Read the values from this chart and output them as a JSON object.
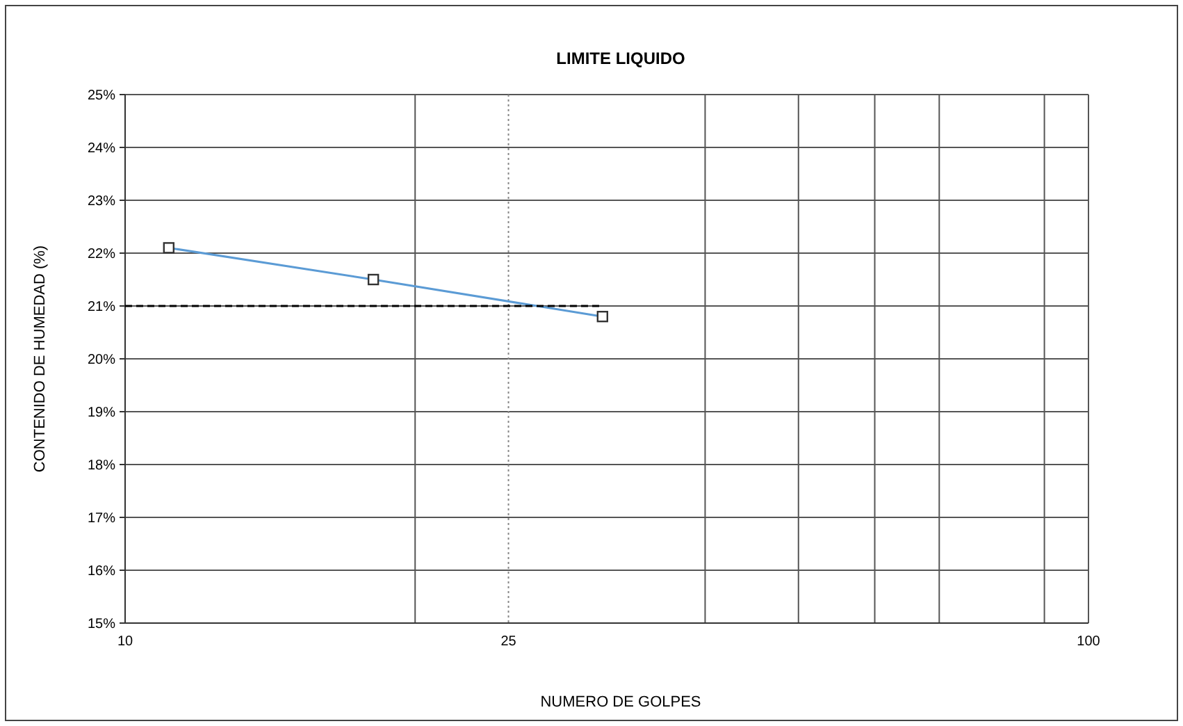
{
  "chart_data": {
    "type": "line",
    "title": "LIMITE LIQUIDO",
    "xlabel": "NUMERO DE GOLPES",
    "ylabel": "CONTENIDO DE HUMEDAD (%)",
    "log": "x",
    "grid": true,
    "marker": "square",
    "xlim": [
      10,
      100
    ],
    "xticks": [
      10,
      {
        "value": 20,
        "label": null
      },
      25,
      {
        "value": 40,
        "label": null
      },
      {
        "value": 50,
        "label": null
      },
      {
        "value": 60,
        "label": null
      },
      {
        "value": 70,
        "label": null
      },
      {
        "value": 90,
        "label": null
      },
      100
    ],
    "ylim": [
      15,
      25
    ],
    "yticks": [
      {
        "value": 15,
        "label": "15%"
      },
      {
        "value": 16,
        "label": "16%"
      },
      {
        "value": 17,
        "label": "17%"
      },
      {
        "value": 18,
        "label": "18%"
      },
      {
        "value": 19,
        "label": "19%"
      },
      {
        "value": 20,
        "label": "20%"
      },
      {
        "value": 21,
        "label": "21%"
      },
      {
        "value": 22,
        "label": "22%"
      },
      {
        "value": 23,
        "label": "23%"
      },
      {
        "value": 24,
        "label": "24%"
      },
      {
        "value": 25,
        "label": "25%"
      }
    ],
    "ref_lines": [
      {
        "axis": "x",
        "value": 25,
        "line_style": "dotted",
        "color": "#888888"
      }
    ],
    "series": [
      {
        "color": "#5b9bd5",
        "x": [
          11.1,
          18.1,
          31.3
        ],
        "values": [
          22.1,
          21.5,
          20.8
        ]
      },
      {
        "color": "#000000",
        "x": [
          10,
          31.3
        ],
        "values": [
          21,
          21
        ],
        "marker": "none",
        "line_style": "dashed"
      }
    ]
  }
}
